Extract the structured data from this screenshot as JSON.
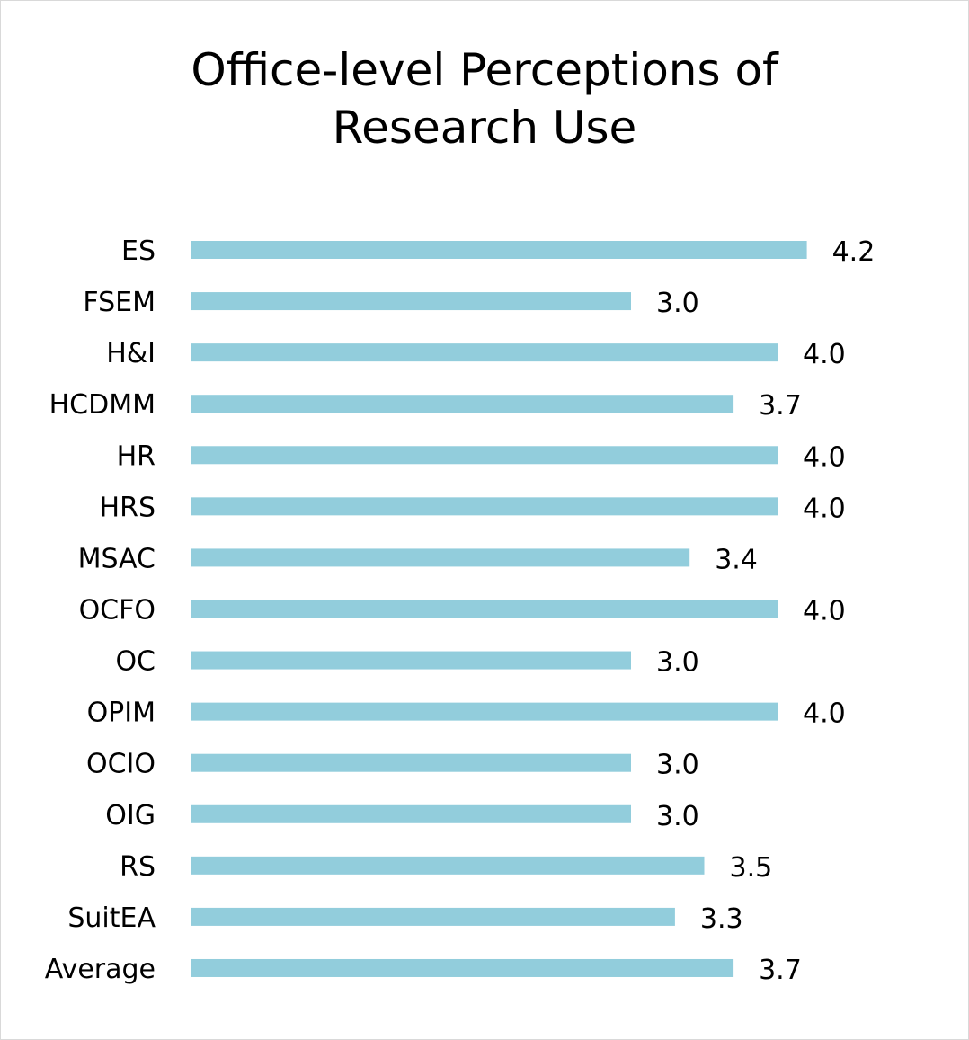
{
  "chart_data": {
    "type": "bar",
    "orientation": "horizontal",
    "title_lines": [
      "Office-level Perceptions of",
      "Research Use"
    ],
    "categories": [
      "ES",
      "FSEM",
      "H&I",
      "HCDMM",
      "HR",
      "HRS",
      "MSAC",
      "OCFO",
      "OC",
      "OPIM",
      "OCIO",
      "OIG",
      "RS",
      "SuitEA",
      "Average"
    ],
    "values": [
      4.2,
      3.0,
      4.0,
      3.7,
      4.0,
      4.0,
      3.4,
      4.0,
      3.0,
      4.0,
      3.0,
      3.0,
      3.5,
      3.3,
      3.7
    ],
    "value_labels": [
      "4.2",
      "3.0",
      "4.0",
      "3.7",
      "4.0",
      "4.0",
      "3.4",
      "4.0",
      "3.0",
      "4.0",
      "3.0",
      "3.0",
      "3.5",
      "3.3",
      "3.7"
    ],
    "bar_color": "#92cddc",
    "grid": false,
    "legend": "none",
    "axis_visible": false
  }
}
